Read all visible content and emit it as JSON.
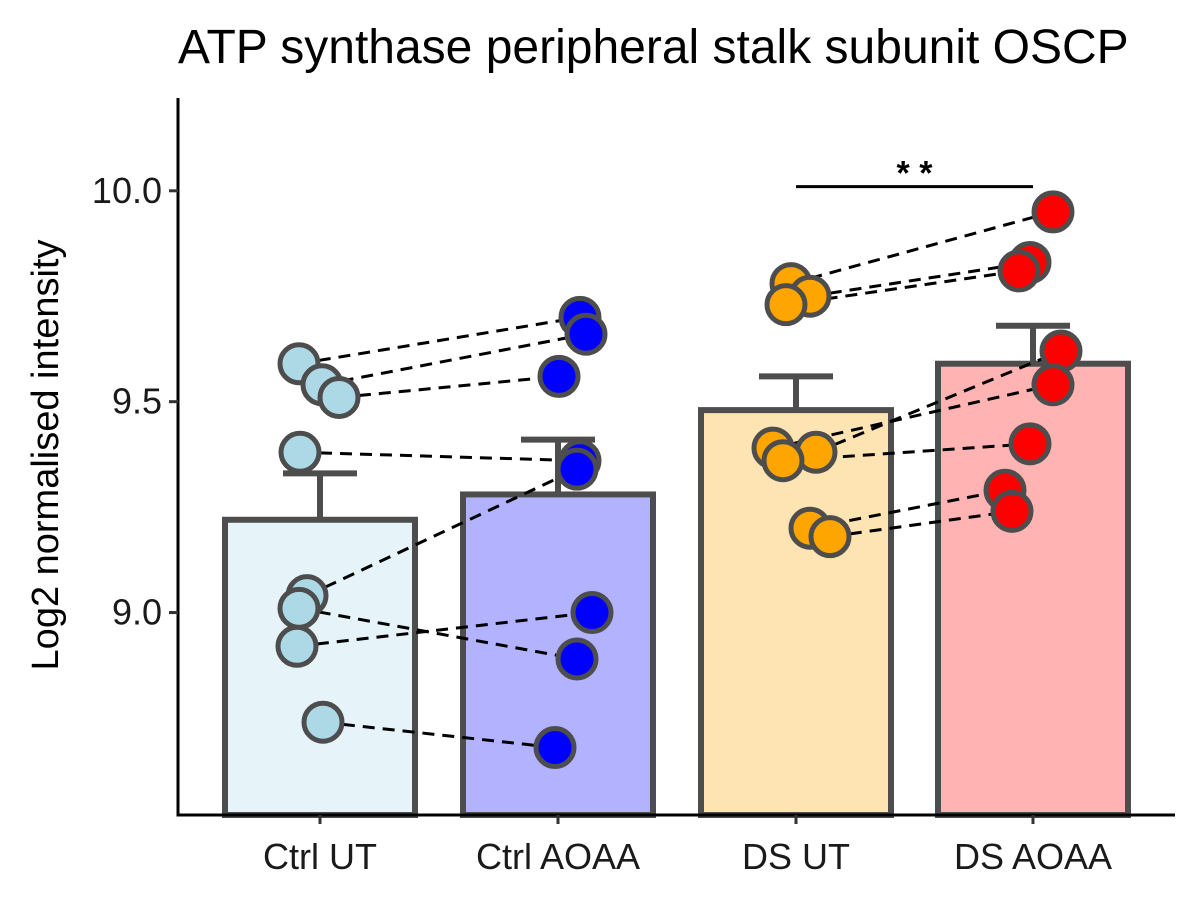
{
  "chart_data": {
    "type": "bar",
    "title": "ATP synthase peripheral stalk subunit OSCP",
    "xlabel": "",
    "ylabel": "Log2 normalised intensity",
    "ylim": [
      8.52,
      10.22
    ],
    "yticks": [
      9.0,
      9.5,
      10.0
    ],
    "ytick_labels": [
      "9.0",
      "9.5",
      "10.0"
    ],
    "categories": [
      "Ctrl UT",
      "Ctrl AOAA",
      "DS UT",
      "DS AOAA"
    ],
    "values": [
      9.22,
      9.28,
      9.48,
      9.59
    ],
    "errors": [
      0.11,
      0.13,
      0.08,
      0.09
    ],
    "colors": {
      "bar_fills": [
        "#e6f3f9",
        "#b2b2ff",
        "#fde4b2",
        "#ffb3b3"
      ],
      "point_fills": [
        "#add8e6",
        "#0000ff",
        "#ffa500",
        "#ff0000"
      ],
      "outline": "#4d4d4d",
      "pair_line": "#000000"
    },
    "points": [
      [
        9.59,
        9.54,
        9.51,
        9.38,
        9.04,
        9.01,
        8.92,
        8.74
      ],
      [
        9.7,
        9.66,
        9.56,
        9.36,
        9.34,
        9.0,
        8.89,
        8.68
      ],
      [
        9.78,
        9.75,
        9.73,
        9.39,
        9.38,
        9.36,
        9.2,
        9.18
      ],
      [
        9.95,
        9.83,
        9.81,
        9.62,
        9.54,
        9.4,
        9.29,
        9.24
      ]
    ],
    "pairs": [
      {
        "group_a": "Ctrl UT",
        "group_b": "Ctrl AOAA",
        "a": 9.59,
        "b": 9.7
      },
      {
        "group_a": "Ctrl UT",
        "group_b": "Ctrl AOAA",
        "a": 9.54,
        "b": 9.66
      },
      {
        "group_a": "Ctrl UT",
        "group_b": "Ctrl AOAA",
        "a": 9.51,
        "b": 9.56
      },
      {
        "group_a": "Ctrl UT",
        "group_b": "Ctrl AOAA",
        "a": 9.38,
        "b": 9.36
      },
      {
        "group_a": "Ctrl UT",
        "group_b": "Ctrl AOAA",
        "a": 9.04,
        "b": 9.34
      },
      {
        "group_a": "Ctrl UT",
        "group_b": "Ctrl AOAA",
        "a": 9.01,
        "b": 8.89
      },
      {
        "group_a": "Ctrl UT",
        "group_b": "Ctrl AOAA",
        "a": 8.92,
        "b": 9.0
      },
      {
        "group_a": "Ctrl UT",
        "group_b": "Ctrl AOAA",
        "a": 8.74,
        "b": 8.68
      },
      {
        "group_a": "DS UT",
        "group_b": "DS AOAA",
        "a": 9.78,
        "b": 9.95
      },
      {
        "group_a": "DS UT",
        "group_b": "DS AOAA",
        "a": 9.75,
        "b": 9.83
      },
      {
        "group_a": "DS UT",
        "group_b": "DS AOAA",
        "a": 9.73,
        "b": 9.81
      },
      {
        "group_a": "DS UT",
        "group_b": "DS AOAA",
        "a": 9.39,
        "b": 9.54
      },
      {
        "group_a": "DS UT",
        "group_b": "DS AOAA",
        "a": 9.38,
        "b": 9.62
      },
      {
        "group_a": "DS UT",
        "group_b": "DS AOAA",
        "a": 9.36,
        "b": 9.4
      },
      {
        "group_a": "DS UT",
        "group_b": "DS AOAA",
        "a": 9.2,
        "b": 9.29
      },
      {
        "group_a": "DS UT",
        "group_b": "DS AOAA",
        "a": 9.18,
        "b": 9.24
      }
    ],
    "significance": [
      {
        "group_a": "DS UT",
        "group_b": "DS AOAA",
        "label": "* *",
        "y": 10.01
      }
    ],
    "grid": false,
    "legend": "none"
  }
}
